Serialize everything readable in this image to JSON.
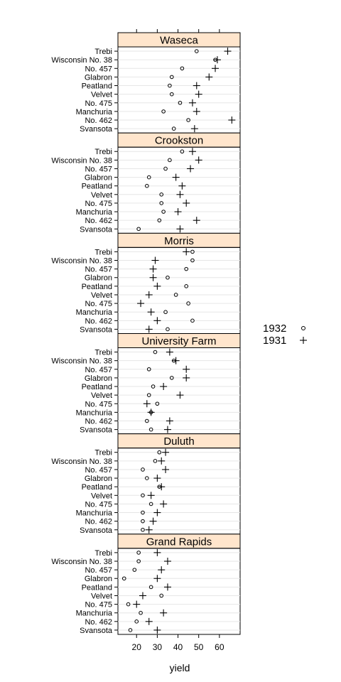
{
  "chart_data": {
    "type": "scatter",
    "xlabel": "yield",
    "xlim": [
      11,
      70
    ],
    "x_ticks": [
      20,
      30,
      40,
      50,
      60
    ],
    "varieties": [
      "Trebi",
      "Wisconsin No. 38",
      "No. 457",
      "Glabron",
      "Peatland",
      "Velvet",
      "No. 475",
      "Manchuria",
      "No. 462",
      "Svansota"
    ],
    "legend_position": "right",
    "series": [
      {
        "name": "1932",
        "marker": "circle"
      },
      {
        "name": "1931",
        "marker": "plus"
      }
    ],
    "panels": [
      {
        "site": "Waseca",
        "y1932": [
          49,
          58,
          42,
          37,
          36,
          37,
          41,
          33,
          45,
          38
        ],
        "y1931": [
          64,
          59,
          58,
          55,
          49,
          50,
          47,
          49,
          66,
          48
        ]
      },
      {
        "site": "Crookston",
        "y1932": [
          42,
          36,
          34,
          26,
          25,
          32,
          32,
          33,
          31,
          21
        ],
        "y1931": [
          47,
          50,
          46,
          39,
          42,
          41,
          44,
          40,
          49,
          41
        ]
      },
      {
        "site": "Morris",
        "y1932": [
          47,
          47,
          44,
          35,
          44,
          39,
          45,
          34,
          47,
          35
        ],
        "y1931": [
          44,
          29,
          28,
          28,
          30,
          26,
          22,
          27,
          30,
          26
        ]
      },
      {
        "site": "University Farm",
        "y1932": [
          29,
          38,
          26,
          37,
          28,
          26,
          30,
          27,
          25,
          27
        ],
        "y1931": [
          36,
          39,
          44,
          44,
          33,
          41,
          25,
          27,
          36,
          35
        ]
      },
      {
        "site": "Duluth",
        "y1932": [
          31,
          29,
          23,
          25,
          31,
          23,
          27,
          23,
          23,
          23
        ],
        "y1931": [
          34,
          32,
          34,
          30,
          32,
          27,
          33,
          30,
          28,
          26
        ]
      },
      {
        "site": "Grand Rapids",
        "y1932": [
          21,
          21,
          19,
          14,
          27,
          32,
          16,
          22,
          20,
          17
        ],
        "y1931": [
          30,
          35,
          32,
          30,
          35,
          23,
          20,
          33,
          26,
          30
        ]
      }
    ]
  },
  "colors": {
    "strip": "#ffe5cc",
    "axis": "#000000",
    "gridline": "#e6e6e6",
    "marker": "#000000"
  }
}
